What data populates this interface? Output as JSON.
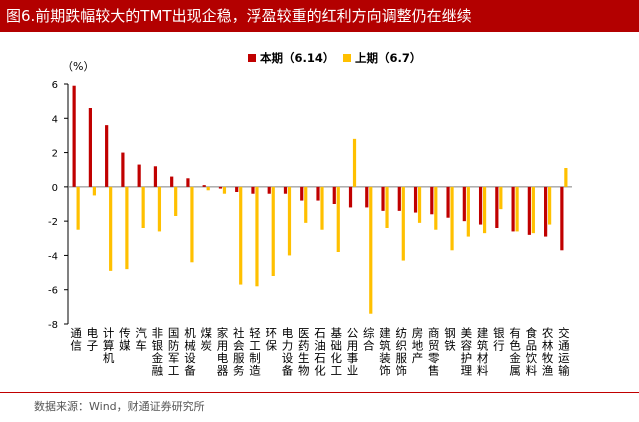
{
  "title": "图6.前期跌幅较大的TMT出现企稳，浮盈较重的红利方向调整仍在继续",
  "source": "数据来源：Wind，财通证券研究所",
  "chart_data": {
    "type": "bar",
    "ylabel": "（%）",
    "ylim": [
      -8,
      6
    ],
    "yticks": [
      -8,
      -6,
      -4,
      -2,
      0,
      2,
      4,
      6
    ],
    "legend_position": "top",
    "categories": [
      "通信",
      "电子",
      "计算机",
      "传媒",
      "汽车",
      "非银金融",
      "国防军工",
      "机械设备",
      "煤炭",
      "家用电器",
      "社会服务",
      "轻工制造",
      "环保",
      "电力设备",
      "医药生物",
      "石油石化",
      "基础化工",
      "公用事业",
      "综合",
      "建筑装饰",
      "纺织服饰",
      "房地产",
      "商贸零售",
      "钢铁",
      "美容护理",
      "建筑材料",
      "银行",
      "有色金属",
      "食品饮料",
      "农林牧渔",
      "交通运输"
    ],
    "series": [
      {
        "name": "本期（6.14）",
        "color": "#c00000",
        "values": [
          5.9,
          4.6,
          3.6,
          2.0,
          1.3,
          1.2,
          0.6,
          0.5,
          0.1,
          -0.1,
          -0.3,
          -0.4,
          -0.4,
          -0.4,
          -0.8,
          -0.8,
          -1.0,
          -1.2,
          -1.2,
          -1.4,
          -1.4,
          -1.5,
          -1.6,
          -1.8,
          -2.0,
          -2.2,
          -2.4,
          -2.6,
          -2.8,
          -2.9,
          -3.7
        ]
      },
      {
        "name": "上期（6.7）",
        "color": "#ffc000",
        "values": [
          -2.5,
          -0.5,
          -4.9,
          -4.8,
          -2.4,
          -2.6,
          -1.7,
          -4.4,
          -0.2,
          -0.4,
          -5.7,
          -5.8,
          -5.2,
          -4.0,
          -2.1,
          -2.5,
          -3.8,
          2.8,
          -7.4,
          -2.4,
          -4.3,
          -2.1,
          -2.5,
          -3.7,
          -2.9,
          -2.7,
          -1.3,
          -2.6,
          -2.7,
          -2.2,
          1.1
        ]
      }
    ]
  }
}
